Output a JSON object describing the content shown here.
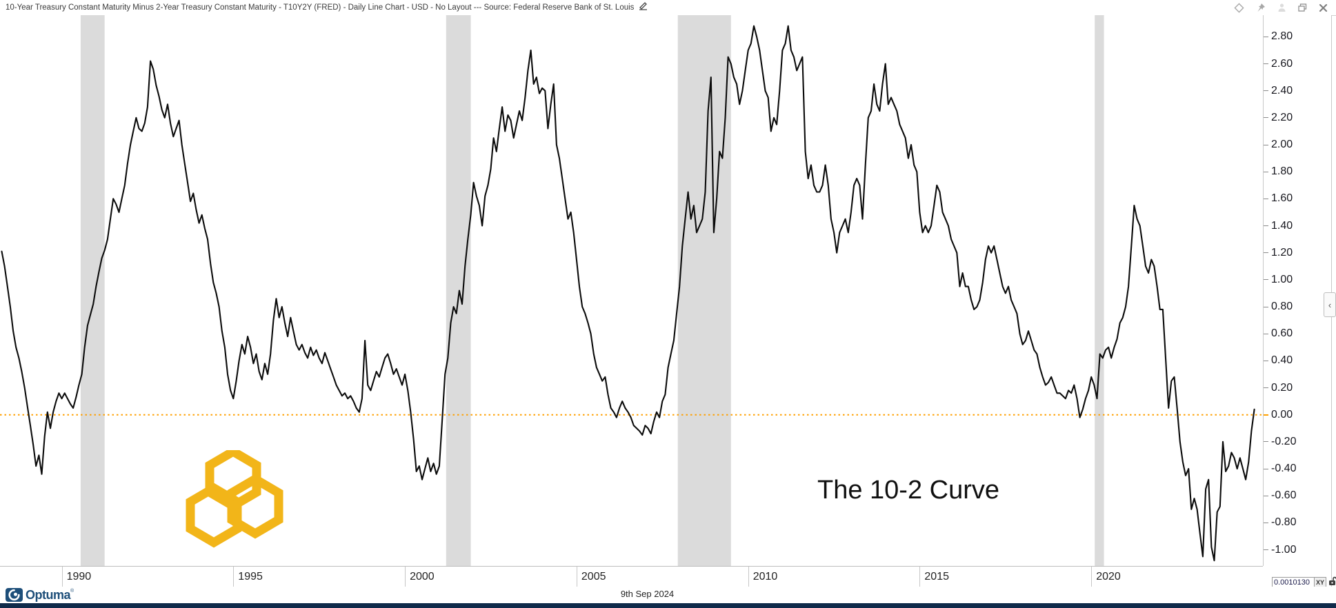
{
  "window": {
    "title": "10-Year Treasury Constant Maturity Minus 2-Year Treasury Constant Maturity - T10Y2Y (FRED) - Daily Line Chart - USD - No Layout --- Source: Federal Reserve Bank of St. Louis"
  },
  "annotation": {
    "text": "The 10-2 Curve"
  },
  "footer": {
    "date": "9th Sep 2024",
    "brand": "Optuma",
    "brand_mark": "®"
  },
  "status_box": {
    "value": "0.0010130",
    "xy_label": "XY"
  },
  "right_panel": {
    "collapse_arrow": "‹"
  },
  "colors": {
    "line": "#0b0b0b",
    "zero_line": "#FFA000",
    "recession_band": "#DBDBDB",
    "brand_navy": "#1d4e79",
    "watermark_gold": "#F2B519",
    "bottom_bar": "#0f2a4a"
  },
  "chart_data": {
    "type": "line",
    "series_name": "T10Y2Y spread (10yr minus 2yr Treasury, %)",
    "x_start_year": 1988.25,
    "x_step_years": 0.0833333,
    "xlim": [
      1988.2,
      2025.0
    ],
    "ylim": [
      -1.12,
      2.96
    ],
    "y_ticks": [
      2.8,
      2.6,
      2.4,
      2.2,
      2.0,
      1.8,
      1.6,
      1.4,
      1.2,
      1.0,
      0.8,
      0.6,
      0.4,
      0.2,
      0.0,
      -0.2,
      -0.4,
      -0.6,
      -0.8,
      -1.0
    ],
    "x_ticks": [
      1990,
      1995,
      2000,
      2005,
      2010,
      2015,
      2020
    ],
    "zero_line": 0.0,
    "grid": false,
    "legend": false,
    "recession_bands": [
      [
        1990.55,
        1991.25
      ],
      [
        2001.2,
        2001.92
      ],
      [
        2007.95,
        2009.5
      ],
      [
        2020.1,
        2020.37
      ]
    ],
    "values": [
      1.21,
      1.1,
      0.95,
      0.8,
      0.62,
      0.5,
      0.42,
      0.32,
      0.2,
      0.06,
      -0.08,
      -0.22,
      -0.38,
      -0.3,
      -0.44,
      -0.16,
      0.02,
      -0.1,
      0.02,
      0.1,
      0.16,
      0.12,
      0.16,
      0.12,
      0.08,
      0.05,
      0.13,
      0.22,
      0.3,
      0.5,
      0.66,
      0.74,
      0.82,
      0.95,
      1.06,
      1.16,
      1.22,
      1.3,
      1.45,
      1.6,
      1.56,
      1.5,
      1.6,
      1.7,
      1.86,
      2.0,
      2.1,
      2.2,
      2.12,
      2.1,
      2.16,
      2.28,
      2.62,
      2.56,
      2.44,
      2.36,
      2.26,
      2.2,
      2.3,
      2.16,
      2.06,
      2.12,
      2.18,
      2.0,
      1.86,
      1.72,
      1.58,
      1.64,
      1.52,
      1.42,
      1.48,
      1.38,
      1.3,
      1.12,
      0.98,
      0.9,
      0.8,
      0.62,
      0.5,
      0.3,
      0.18,
      0.12,
      0.25,
      0.4,
      0.52,
      0.45,
      0.58,
      0.5,
      0.38,
      0.45,
      0.32,
      0.26,
      0.38,
      0.3,
      0.45,
      0.7,
      0.86,
      0.72,
      0.8,
      0.68,
      0.58,
      0.72,
      0.62,
      0.52,
      0.48,
      0.52,
      0.46,
      0.42,
      0.5,
      0.44,
      0.48,
      0.42,
      0.38,
      0.46,
      0.4,
      0.34,
      0.28,
      0.22,
      0.18,
      0.14,
      0.16,
      0.12,
      0.14,
      0.1,
      0.05,
      0.02,
      0.12,
      0.55,
      0.22,
      0.18,
      0.25,
      0.32,
      0.28,
      0.35,
      0.42,
      0.45,
      0.38,
      0.3,
      0.34,
      0.28,
      0.22,
      0.3,
      0.18,
      0.02,
      -0.18,
      -0.42,
      -0.38,
      -0.48,
      -0.4,
      -0.32,
      -0.42,
      -0.36,
      -0.44,
      -0.38,
      -0.05,
      0.3,
      0.42,
      0.68,
      0.8,
      0.75,
      0.92,
      0.82,
      1.1,
      1.3,
      1.48,
      1.72,
      1.62,
      1.55,
      1.4,
      1.62,
      1.7,
      1.82,
      2.05,
      1.95,
      2.12,
      2.28,
      2.1,
      2.22,
      2.18,
      2.05,
      2.15,
      2.25,
      2.18,
      2.35,
      2.55,
      2.7,
      2.45,
      2.5,
      2.38,
      2.42,
      2.4,
      2.12,
      2.3,
      2.45,
      2.0,
      1.9,
      1.75,
      1.6,
      1.45,
      1.5,
      1.35,
      1.15,
      0.95,
      0.8,
      0.75,
      0.68,
      0.6,
      0.45,
      0.35,
      0.3,
      0.25,
      0.28,
      0.15,
      0.05,
      0.02,
      -0.02,
      0.05,
      0.1,
      0.05,
      0.02,
      -0.02,
      -0.08,
      -0.1,
      -0.12,
      -0.15,
      -0.08,
      -0.1,
      -0.14,
      -0.05,
      0.02,
      -0.02,
      0.1,
      0.15,
      0.35,
      0.45,
      0.55,
      0.75,
      0.95,
      1.25,
      1.45,
      1.65,
      1.45,
      1.55,
      1.35,
      1.4,
      1.45,
      1.65,
      2.25,
      2.5,
      1.35,
      1.6,
      1.95,
      1.9,
      2.2,
      2.65,
      2.6,
      2.5,
      2.45,
      2.3,
      2.4,
      2.55,
      2.7,
      2.75,
      2.88,
      2.8,
      2.7,
      2.55,
      2.4,
      2.35,
      2.1,
      2.2,
      2.15,
      2.4,
      2.7,
      2.75,
      2.88,
      2.7,
      2.65,
      2.55,
      2.6,
      2.65,
      1.95,
      1.75,
      1.85,
      1.7,
      1.65,
      1.65,
      1.7,
      1.85,
      1.7,
      1.45,
      1.35,
      1.2,
      1.35,
      1.4,
      1.45,
      1.35,
      1.5,
      1.7,
      1.75,
      1.7,
      1.45,
      1.85,
      2.2,
      2.25,
      2.45,
      2.3,
      2.25,
      2.45,
      2.6,
      2.3,
      2.35,
      2.3,
      2.25,
      2.15,
      2.1,
      2.05,
      1.9,
      2.0,
      1.85,
      1.8,
      1.5,
      1.35,
      1.4,
      1.35,
      1.4,
      1.55,
      1.7,
      1.65,
      1.5,
      1.45,
      1.4,
      1.3,
      1.25,
      1.2,
      0.95,
      1.05,
      0.95,
      0.95,
      0.85,
      0.78,
      0.8,
      0.85,
      0.98,
      1.15,
      1.25,
      1.2,
      1.25,
      1.15,
      1.05,
      0.95,
      0.9,
      0.95,
      0.85,
      0.8,
      0.75,
      0.6,
      0.52,
      0.55,
      0.62,
      0.55,
      0.48,
      0.45,
      0.35,
      0.28,
      0.22,
      0.24,
      0.28,
      0.22,
      0.16,
      0.16,
      0.14,
      0.12,
      0.18,
      0.16,
      0.22,
      0.12,
      -0.02,
      0.04,
      0.12,
      0.18,
      0.28,
      0.22,
      0.12,
      0.45,
      0.42,
      0.48,
      0.5,
      0.42,
      0.5,
      0.56,
      0.68,
      0.72,
      0.8,
      0.95,
      1.25,
      1.55,
      1.45,
      1.4,
      1.25,
      1.1,
      1.05,
      1.15,
      1.1,
      0.95,
      0.78,
      0.78,
      0.42,
      0.05,
      0.25,
      0.28,
      0.05,
      -0.2,
      -0.35,
      -0.45,
      -0.4,
      -0.7,
      -0.62,
      -0.7,
      -0.88,
      -1.05,
      -0.55,
      -0.48,
      -0.98,
      -1.08,
      -0.72,
      -0.68,
      -0.2,
      -0.42,
      -0.38,
      -0.28,
      -0.32,
      -0.4,
      -0.32,
      -0.4,
      -0.48,
      -0.35,
      -0.12,
      0.04
    ]
  }
}
